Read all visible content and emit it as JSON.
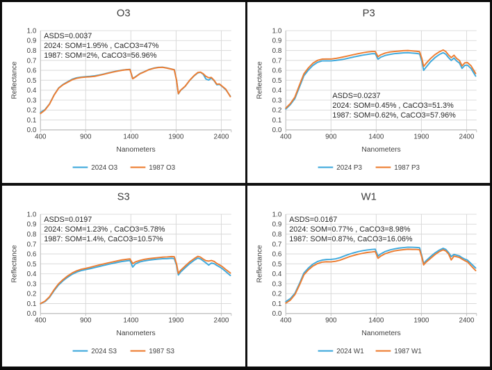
{
  "page": {
    "background": "#ffffff",
    "frame_color": "#0b0b0b"
  },
  "palette": {
    "series_2024": "#3fa9dc",
    "series_1987": "#ed7d31",
    "gridline": "#d9d9d9",
    "axis": "#bfbfbf",
    "text": "#404040",
    "annotation_text": "#262626"
  },
  "chart_data": [
    {
      "type": "line",
      "title": "O3",
      "xlabel": "Nanometers",
      "ylabel": "Reflectance",
      "xlim": [
        400,
        2510
      ],
      "ylim": [
        0,
        1
      ],
      "xticks": [
        400,
        900,
        1400,
        1900,
        2400
      ],
      "ytick_step": 0.1,
      "grid": true,
      "legend_position": "bottom",
      "annotation": [
        "ASDS=0.0037",
        "2024: SOM=1.95% , CaCO3=47%",
        "1987: SOM=2%, CaCO3=56.96%"
      ],
      "annotation_pos": [
        61,
        53
      ],
      "x": [
        400,
        450,
        500,
        550,
        600,
        650,
        700,
        750,
        800,
        850,
        900,
        950,
        1000,
        1050,
        1100,
        1150,
        1200,
        1250,
        1300,
        1350,
        1390,
        1420,
        1450,
        1500,
        1550,
        1600,
        1650,
        1700,
        1750,
        1800,
        1850,
        1880,
        1905,
        1925,
        1950,
        2000,
        2050,
        2100,
        2140,
        2170,
        2200,
        2230,
        2260,
        2290,
        2320,
        2350,
        2380,
        2410,
        2450,
        2500
      ],
      "series": [
        {
          "name": "2024 O3",
          "color": "#3fa9dc",
          "values": [
            0.175,
            0.205,
            0.262,
            0.352,
            0.422,
            0.458,
            0.484,
            0.51,
            0.525,
            0.532,
            0.536,
            0.54,
            0.545,
            0.553,
            0.563,
            0.574,
            0.584,
            0.594,
            0.602,
            0.607,
            0.61,
            0.517,
            0.535,
            0.567,
            0.587,
            0.608,
            0.622,
            0.63,
            0.632,
            0.624,
            0.613,
            0.606,
            0.5,
            0.362,
            0.398,
            0.438,
            0.498,
            0.545,
            0.575,
            0.58,
            0.56,
            0.512,
            0.502,
            0.522,
            0.496,
            0.455,
            0.458,
            0.437,
            0.405,
            0.34
          ]
        },
        {
          "name": "1987 O3",
          "color": "#ed7d31",
          "values": [
            0.165,
            0.2,
            0.26,
            0.35,
            0.42,
            0.455,
            0.48,
            0.505,
            0.52,
            0.528,
            0.532,
            0.535,
            0.54,
            0.55,
            0.56,
            0.572,
            0.582,
            0.592,
            0.6,
            0.606,
            0.608,
            0.515,
            0.532,
            0.565,
            0.585,
            0.607,
            0.62,
            0.628,
            0.63,
            0.622,
            0.612,
            0.605,
            0.5,
            0.365,
            0.4,
            0.44,
            0.5,
            0.548,
            0.578,
            0.582,
            0.565,
            0.54,
            0.525,
            0.528,
            0.5,
            0.46,
            0.462,
            0.44,
            0.41,
            0.335
          ]
        }
      ]
    },
    {
      "type": "line",
      "title": "P3",
      "xlabel": "Nanometers",
      "ylabel": "Reflectance",
      "xlim": [
        400,
        2510
      ],
      "ylim": [
        0,
        1
      ],
      "xticks": [
        400,
        900,
        1400,
        1900,
        2400
      ],
      "ytick_step": 0.1,
      "grid": true,
      "legend_position": "bottom",
      "annotation": [
        "ASDS=0.0237",
        "2024: SOM=0.45% , CaCO3=51.3%",
        "1987: SOM=0.62%, CaCO3=57.96%"
      ],
      "annotation_pos": [
        124,
        141
      ],
      "x": [
        400,
        450,
        500,
        550,
        600,
        650,
        700,
        750,
        800,
        850,
        900,
        950,
        1000,
        1050,
        1100,
        1150,
        1200,
        1250,
        1300,
        1350,
        1390,
        1420,
        1450,
        1500,
        1550,
        1600,
        1650,
        1700,
        1750,
        1800,
        1850,
        1880,
        1905,
        1925,
        1950,
        2000,
        2050,
        2100,
        2140,
        2170,
        2200,
        2230,
        2260,
        2290,
        2320,
        2350,
        2380,
        2410,
        2450,
        2500
      ],
      "series": [
        {
          "name": "2024 P3",
          "color": "#3fa9dc",
          "values": [
            0.21,
            0.255,
            0.315,
            0.43,
            0.545,
            0.603,
            0.65,
            0.68,
            0.695,
            0.696,
            0.695,
            0.7,
            0.706,
            0.714,
            0.724,
            0.734,
            0.744,
            0.753,
            0.76,
            0.767,
            0.768,
            0.712,
            0.732,
            0.75,
            0.76,
            0.768,
            0.772,
            0.776,
            0.778,
            0.774,
            0.77,
            0.765,
            0.69,
            0.6,
            0.63,
            0.685,
            0.728,
            0.76,
            0.778,
            0.762,
            0.728,
            0.7,
            0.724,
            0.694,
            0.674,
            0.62,
            0.65,
            0.652,
            0.618,
            0.542
          ]
        },
        {
          "name": "1987 P3",
          "color": "#ed7d31",
          "values": [
            0.22,
            0.265,
            0.33,
            0.45,
            0.565,
            0.625,
            0.672,
            0.7,
            0.713,
            0.714,
            0.714,
            0.72,
            0.728,
            0.738,
            0.748,
            0.758,
            0.768,
            0.777,
            0.784,
            0.79,
            0.79,
            0.738,
            0.756,
            0.774,
            0.784,
            0.79,
            0.794,
            0.798,
            0.8,
            0.796,
            0.792,
            0.788,
            0.72,
            0.64,
            0.668,
            0.718,
            0.758,
            0.788,
            0.805,
            0.79,
            0.755,
            0.728,
            0.752,
            0.72,
            0.7,
            0.645,
            0.675,
            0.678,
            0.645,
            0.568
          ]
        }
      ]
    },
    {
      "type": "line",
      "title": "S3",
      "xlabel": "Nanometers",
      "ylabel": "Reflectance",
      "xlim": [
        400,
        2510
      ],
      "ylim": [
        0,
        1
      ],
      "xticks": [
        400,
        900,
        1400,
        1900,
        2400
      ],
      "ytick_step": 0.1,
      "grid": true,
      "legend_position": "bottom",
      "annotation": [
        "ASDS=0.0197",
        "2024: SOM=1.23% , CaCO3=5.78%",
        "1987: SOM=1.4%, CaCO3=10.57%"
      ],
      "annotation_pos": [
        61,
        53
      ],
      "x": [
        400,
        450,
        500,
        550,
        600,
        650,
        700,
        750,
        800,
        850,
        900,
        950,
        1000,
        1050,
        1100,
        1150,
        1200,
        1250,
        1300,
        1350,
        1390,
        1420,
        1450,
        1500,
        1550,
        1600,
        1650,
        1700,
        1750,
        1800,
        1850,
        1880,
        1905,
        1925,
        1950,
        2000,
        2050,
        2100,
        2140,
        2170,
        2200,
        2230,
        2260,
        2290,
        2320,
        2350,
        2380,
        2410,
        2450,
        2500
      ],
      "series": [
        {
          "name": "2024 S3",
          "color": "#3fa9dc",
          "values": [
            0.098,
            0.12,
            0.163,
            0.23,
            0.288,
            0.33,
            0.365,
            0.395,
            0.417,
            0.432,
            0.442,
            0.452,
            0.463,
            0.474,
            0.485,
            0.495,
            0.505,
            0.515,
            0.524,
            0.53,
            0.534,
            0.468,
            0.5,
            0.52,
            0.53,
            0.538,
            0.543,
            0.548,
            0.552,
            0.553,
            0.556,
            0.553,
            0.485,
            0.388,
            0.418,
            0.46,
            0.502,
            0.536,
            0.558,
            0.55,
            0.53,
            0.51,
            0.488,
            0.508,
            0.502,
            0.485,
            0.47,
            0.452,
            0.422,
            0.383
          ]
        },
        {
          "name": "1987 S3",
          "color": "#ed7d31",
          "values": [
            0.1,
            0.125,
            0.17,
            0.24,
            0.3,
            0.342,
            0.378,
            0.408,
            0.43,
            0.445,
            0.455,
            0.466,
            0.478,
            0.489,
            0.5,
            0.51,
            0.52,
            0.53,
            0.54,
            0.546,
            0.55,
            0.503,
            0.52,
            0.535,
            0.546,
            0.553,
            0.558,
            0.563,
            0.568,
            0.57,
            0.574,
            0.572,
            0.5,
            0.405,
            0.435,
            0.478,
            0.52,
            0.553,
            0.576,
            0.568,
            0.548,
            0.532,
            0.528,
            0.534,
            0.525,
            0.505,
            0.49,
            0.473,
            0.443,
            0.408
          ]
        }
      ]
    },
    {
      "type": "line",
      "title": "W1",
      "xlabel": "Nanometers",
      "ylabel": "Reflectance",
      "xlim": [
        400,
        2510
      ],
      "ylim": [
        0,
        1
      ],
      "xticks": [
        400,
        900,
        1400,
        1900,
        2400
      ],
      "ytick_step": 0.1,
      "grid": true,
      "legend_position": "bottom",
      "annotation": [
        "ASDS=0.0167",
        "2024: SOM=0.77% , CaCO3=8.98%",
        "1987: SOM=0.87%, CaCO3=16.06%"
      ],
      "annotation_pos": [
        61,
        53
      ],
      "x": [
        400,
        450,
        500,
        550,
        600,
        650,
        700,
        750,
        800,
        850,
        900,
        950,
        1000,
        1050,
        1100,
        1150,
        1200,
        1250,
        1300,
        1350,
        1390,
        1420,
        1450,
        1500,
        1550,
        1600,
        1650,
        1700,
        1750,
        1800,
        1850,
        1880,
        1905,
        1925,
        1950,
        2000,
        2050,
        2100,
        2140,
        2170,
        2200,
        2230,
        2260,
        2290,
        2320,
        2350,
        2380,
        2410,
        2450,
        2500
      ],
      "series": [
        {
          "name": "2024 W1",
          "color": "#3fa9dc",
          "values": [
            0.12,
            0.15,
            0.202,
            0.3,
            0.408,
            0.458,
            0.497,
            0.523,
            0.538,
            0.544,
            0.545,
            0.551,
            0.563,
            0.58,
            0.597,
            0.611,
            0.623,
            0.633,
            0.64,
            0.645,
            0.648,
            0.578,
            0.6,
            0.625,
            0.64,
            0.651,
            0.659,
            0.664,
            0.668,
            0.667,
            0.665,
            0.662,
            0.58,
            0.503,
            0.53,
            0.572,
            0.61,
            0.64,
            0.657,
            0.645,
            0.615,
            0.573,
            0.595,
            0.588,
            0.58,
            0.562,
            0.548,
            0.538,
            0.502,
            0.458
          ]
        },
        {
          "name": "1987 W1",
          "color": "#ed7d31",
          "values": [
            0.105,
            0.135,
            0.19,
            0.285,
            0.39,
            0.44,
            0.478,
            0.503,
            0.517,
            0.521,
            0.52,
            0.526,
            0.538,
            0.554,
            0.571,
            0.585,
            0.597,
            0.607,
            0.615,
            0.62,
            0.625,
            0.556,
            0.578,
            0.603,
            0.618,
            0.63,
            0.638,
            0.643,
            0.647,
            0.646,
            0.645,
            0.642,
            0.565,
            0.49,
            0.515,
            0.555,
            0.593,
            0.625,
            0.642,
            0.63,
            0.6,
            0.54,
            0.578,
            0.572,
            0.565,
            0.548,
            0.532,
            0.52,
            0.48,
            0.432
          ]
        }
      ]
    }
  ]
}
